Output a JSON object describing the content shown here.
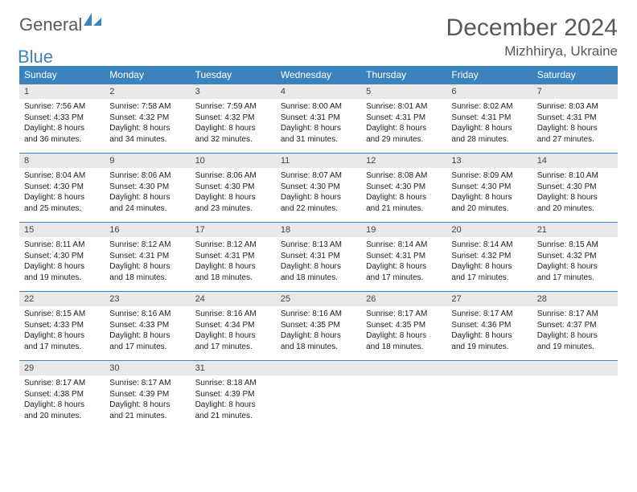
{
  "logo": {
    "text1": "General",
    "text2": "Blue"
  },
  "title": "December 2024",
  "location": "Mizhhirya, Ukraine",
  "colors": {
    "header_bg": "#3b83bd",
    "header_fg": "#ffffff",
    "daynum_bg": "#e9e9e9",
    "row_border": "#3b83bd",
    "text": "#595959"
  },
  "weekdays": [
    "Sunday",
    "Monday",
    "Tuesday",
    "Wednesday",
    "Thursday",
    "Friday",
    "Saturday"
  ],
  "weeks": [
    [
      {
        "n": "1",
        "sr": "Sunrise: 7:56 AM",
        "ss": "Sunset: 4:33 PM",
        "dl": "Daylight: 8 hours and 36 minutes."
      },
      {
        "n": "2",
        "sr": "Sunrise: 7:58 AM",
        "ss": "Sunset: 4:32 PM",
        "dl": "Daylight: 8 hours and 34 minutes."
      },
      {
        "n": "3",
        "sr": "Sunrise: 7:59 AM",
        "ss": "Sunset: 4:32 PM",
        "dl": "Daylight: 8 hours and 32 minutes."
      },
      {
        "n": "4",
        "sr": "Sunrise: 8:00 AM",
        "ss": "Sunset: 4:31 PM",
        "dl": "Daylight: 8 hours and 31 minutes."
      },
      {
        "n": "5",
        "sr": "Sunrise: 8:01 AM",
        "ss": "Sunset: 4:31 PM",
        "dl": "Daylight: 8 hours and 29 minutes."
      },
      {
        "n": "6",
        "sr": "Sunrise: 8:02 AM",
        "ss": "Sunset: 4:31 PM",
        "dl": "Daylight: 8 hours and 28 minutes."
      },
      {
        "n": "7",
        "sr": "Sunrise: 8:03 AM",
        "ss": "Sunset: 4:31 PM",
        "dl": "Daylight: 8 hours and 27 minutes."
      }
    ],
    [
      {
        "n": "8",
        "sr": "Sunrise: 8:04 AM",
        "ss": "Sunset: 4:30 PM",
        "dl": "Daylight: 8 hours and 25 minutes."
      },
      {
        "n": "9",
        "sr": "Sunrise: 8:06 AM",
        "ss": "Sunset: 4:30 PM",
        "dl": "Daylight: 8 hours and 24 minutes."
      },
      {
        "n": "10",
        "sr": "Sunrise: 8:06 AM",
        "ss": "Sunset: 4:30 PM",
        "dl": "Daylight: 8 hours and 23 minutes."
      },
      {
        "n": "11",
        "sr": "Sunrise: 8:07 AM",
        "ss": "Sunset: 4:30 PM",
        "dl": "Daylight: 8 hours and 22 minutes."
      },
      {
        "n": "12",
        "sr": "Sunrise: 8:08 AM",
        "ss": "Sunset: 4:30 PM",
        "dl": "Daylight: 8 hours and 21 minutes."
      },
      {
        "n": "13",
        "sr": "Sunrise: 8:09 AM",
        "ss": "Sunset: 4:30 PM",
        "dl": "Daylight: 8 hours and 20 minutes."
      },
      {
        "n": "14",
        "sr": "Sunrise: 8:10 AM",
        "ss": "Sunset: 4:30 PM",
        "dl": "Daylight: 8 hours and 20 minutes."
      }
    ],
    [
      {
        "n": "15",
        "sr": "Sunrise: 8:11 AM",
        "ss": "Sunset: 4:30 PM",
        "dl": "Daylight: 8 hours and 19 minutes."
      },
      {
        "n": "16",
        "sr": "Sunrise: 8:12 AM",
        "ss": "Sunset: 4:31 PM",
        "dl": "Daylight: 8 hours and 18 minutes."
      },
      {
        "n": "17",
        "sr": "Sunrise: 8:12 AM",
        "ss": "Sunset: 4:31 PM",
        "dl": "Daylight: 8 hours and 18 minutes."
      },
      {
        "n": "18",
        "sr": "Sunrise: 8:13 AM",
        "ss": "Sunset: 4:31 PM",
        "dl": "Daylight: 8 hours and 18 minutes."
      },
      {
        "n": "19",
        "sr": "Sunrise: 8:14 AM",
        "ss": "Sunset: 4:31 PM",
        "dl": "Daylight: 8 hours and 17 minutes."
      },
      {
        "n": "20",
        "sr": "Sunrise: 8:14 AM",
        "ss": "Sunset: 4:32 PM",
        "dl": "Daylight: 8 hours and 17 minutes."
      },
      {
        "n": "21",
        "sr": "Sunrise: 8:15 AM",
        "ss": "Sunset: 4:32 PM",
        "dl": "Daylight: 8 hours and 17 minutes."
      }
    ],
    [
      {
        "n": "22",
        "sr": "Sunrise: 8:15 AM",
        "ss": "Sunset: 4:33 PM",
        "dl": "Daylight: 8 hours and 17 minutes."
      },
      {
        "n": "23",
        "sr": "Sunrise: 8:16 AM",
        "ss": "Sunset: 4:33 PM",
        "dl": "Daylight: 8 hours and 17 minutes."
      },
      {
        "n": "24",
        "sr": "Sunrise: 8:16 AM",
        "ss": "Sunset: 4:34 PM",
        "dl": "Daylight: 8 hours and 17 minutes."
      },
      {
        "n": "25",
        "sr": "Sunrise: 8:16 AM",
        "ss": "Sunset: 4:35 PM",
        "dl": "Daylight: 8 hours and 18 minutes."
      },
      {
        "n": "26",
        "sr": "Sunrise: 8:17 AM",
        "ss": "Sunset: 4:35 PM",
        "dl": "Daylight: 8 hours and 18 minutes."
      },
      {
        "n": "27",
        "sr": "Sunrise: 8:17 AM",
        "ss": "Sunset: 4:36 PM",
        "dl": "Daylight: 8 hours and 19 minutes."
      },
      {
        "n": "28",
        "sr": "Sunrise: 8:17 AM",
        "ss": "Sunset: 4:37 PM",
        "dl": "Daylight: 8 hours and 19 minutes."
      }
    ],
    [
      {
        "n": "29",
        "sr": "Sunrise: 8:17 AM",
        "ss": "Sunset: 4:38 PM",
        "dl": "Daylight: 8 hours and 20 minutes."
      },
      {
        "n": "30",
        "sr": "Sunrise: 8:17 AM",
        "ss": "Sunset: 4:39 PM",
        "dl": "Daylight: 8 hours and 21 minutes."
      },
      {
        "n": "31",
        "sr": "Sunrise: 8:18 AM",
        "ss": "Sunset: 4:39 PM",
        "dl": "Daylight: 8 hours and 21 minutes."
      },
      {
        "empty": true
      },
      {
        "empty": true
      },
      {
        "empty": true
      },
      {
        "empty": true
      }
    ]
  ]
}
